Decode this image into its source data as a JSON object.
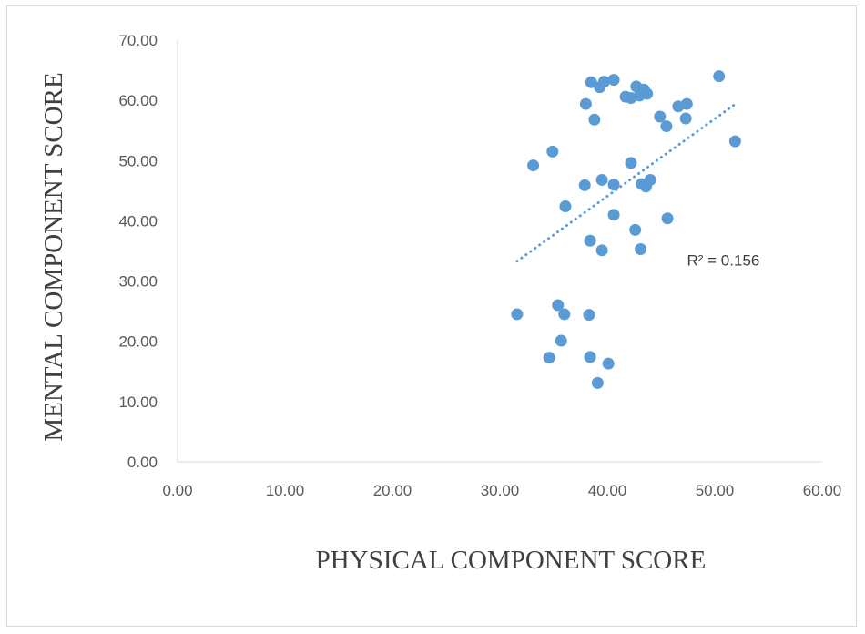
{
  "chart_data": {
    "type": "scatter",
    "xlabel": "PHYSICAL COMPONENT SCORE",
    "ylabel": "MENTAL COMPONENT SCORE",
    "xlim": [
      0,
      60
    ],
    "ylim": [
      0,
      70
    ],
    "x_ticks": [
      "0.00",
      "10.00",
      "20.00",
      "30.00",
      "40.00",
      "50.00",
      "60.00"
    ],
    "y_ticks": [
      "0.00",
      "10.00",
      "20.00",
      "30.00",
      "40.00",
      "50.00",
      "60.00",
      "70.00"
    ],
    "grid": false,
    "marker_color": "#5b9bd5",
    "trendline": {
      "type": "linear",
      "style": "dotted",
      "color": "#5b9bd5",
      "x_range": [
        31.6,
        52.0
      ],
      "y_range": [
        33.3,
        59.5
      ],
      "annotation": "R² = 0.156",
      "annotation_at": [
        50.8,
        33.5
      ]
    },
    "points": [
      [
        31.6,
        24.5
      ],
      [
        33.1,
        49.2
      ],
      [
        34.6,
        17.3
      ],
      [
        34.9,
        51.5
      ],
      [
        35.4,
        26.0
      ],
      [
        35.7,
        20.1
      ],
      [
        36.0,
        24.5
      ],
      [
        36.1,
        42.4
      ],
      [
        37.9,
        45.9
      ],
      [
        38.0,
        59.4
      ],
      [
        38.3,
        24.4
      ],
      [
        38.4,
        17.4
      ],
      [
        38.4,
        36.7
      ],
      [
        38.5,
        63.0
      ],
      [
        38.8,
        56.8
      ],
      [
        39.1,
        13.1
      ],
      [
        39.3,
        62.2
      ],
      [
        39.5,
        35.1
      ],
      [
        39.5,
        46.8
      ],
      [
        39.7,
        63.1
      ],
      [
        40.1,
        16.3
      ],
      [
        40.6,
        63.4
      ],
      [
        40.6,
        46.0
      ],
      [
        40.6,
        41.0
      ],
      [
        41.7,
        60.6
      ],
      [
        42.2,
        49.6
      ],
      [
        42.2,
        60.4
      ],
      [
        42.6,
        38.5
      ],
      [
        42.7,
        62.3
      ],
      [
        43.0,
        60.8
      ],
      [
        43.1,
        35.3
      ],
      [
        43.2,
        46.1
      ],
      [
        43.4,
        61.8
      ],
      [
        43.6,
        45.7
      ],
      [
        43.7,
        61.1
      ],
      [
        44.0,
        46.8
      ],
      [
        44.9,
        57.3
      ],
      [
        45.5,
        55.7
      ],
      [
        45.6,
        40.4
      ],
      [
        46.6,
        59.0
      ],
      [
        47.3,
        57.0
      ],
      [
        47.4,
        59.4
      ],
      [
        50.4,
        64.0
      ],
      [
        51.9,
        53.2
      ]
    ]
  }
}
